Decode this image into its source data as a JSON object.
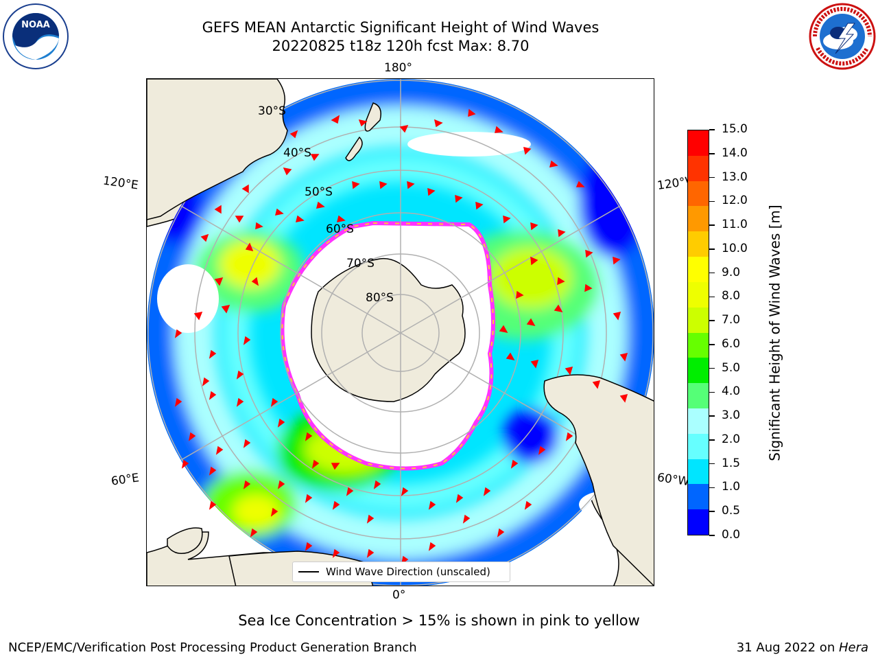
{
  "header": {
    "title_line1": "GEFS MEAN Antarctic Significant Height of Wind Waves",
    "title_line2": "20220825 t18z 120h fcst   Max: 8.70"
  },
  "logos": {
    "noaa_text": "NOAA"
  },
  "map": {
    "longitude_labels": {
      "top": "180°",
      "bottom": "0°",
      "upper_left": "120°E",
      "lower_left": "60°E",
      "upper_right": "120°W",
      "lower_right": "60°W"
    },
    "latitude_labels": [
      "30°S",
      "40°S",
      "50°S",
      "60°S",
      "70°S",
      "80°S"
    ],
    "legend_label": "Wind Wave Direction (unscaled)",
    "arrow_color": "#ff0000",
    "land_color": "#efebdc",
    "ice_colors": [
      "#ff33ff",
      "#ffcc33"
    ]
  },
  "colorbar": {
    "label": "Significant Height of Wind Waves [m]",
    "ticks": [
      "0.0",
      "0.5",
      "1.0",
      "1.5",
      "2.0",
      "3.0",
      "4.0",
      "5.0",
      "6.0",
      "7.0",
      "8.0",
      "9.0",
      "10.0",
      "11.0",
      "12.0",
      "13.0",
      "14.0",
      "15.0"
    ],
    "colors": [
      "#0000ff",
      "#0066ff",
      "#00e5ff",
      "#66ffff",
      "#aaffff",
      "#55ff77",
      "#00ee00",
      "#66ff00",
      "#ccff00",
      "#eeff00",
      "#ffff00",
      "#ffcc00",
      "#ff9900",
      "#ff6600",
      "#ff3300",
      "#ff0000"
    ]
  },
  "chart_data": {
    "type": "heatmap",
    "projection": "south polar stereographic",
    "title": "GEFS MEAN Antarctic Significant Height of Wind Waves",
    "max_value": 8.7,
    "colorbar_range": [
      0.0,
      15.0
    ],
    "colorbar_levels": [
      0.0,
      0.5,
      1.0,
      1.5,
      2.0,
      3.0,
      4.0,
      5.0,
      6.0,
      7.0,
      8.0,
      9.0,
      10.0,
      11.0,
      12.0,
      13.0,
      14.0,
      15.0
    ]
  },
  "notes": {
    "sea_ice": "Sea Ice Concentration > 15% is shown in pink to yellow"
  },
  "footer": {
    "left": "NCEP/EMC/Verification Post Processing Product Generation Branch",
    "right_prefix": "31 Aug 2022 on ",
    "right_host": "Hera"
  }
}
